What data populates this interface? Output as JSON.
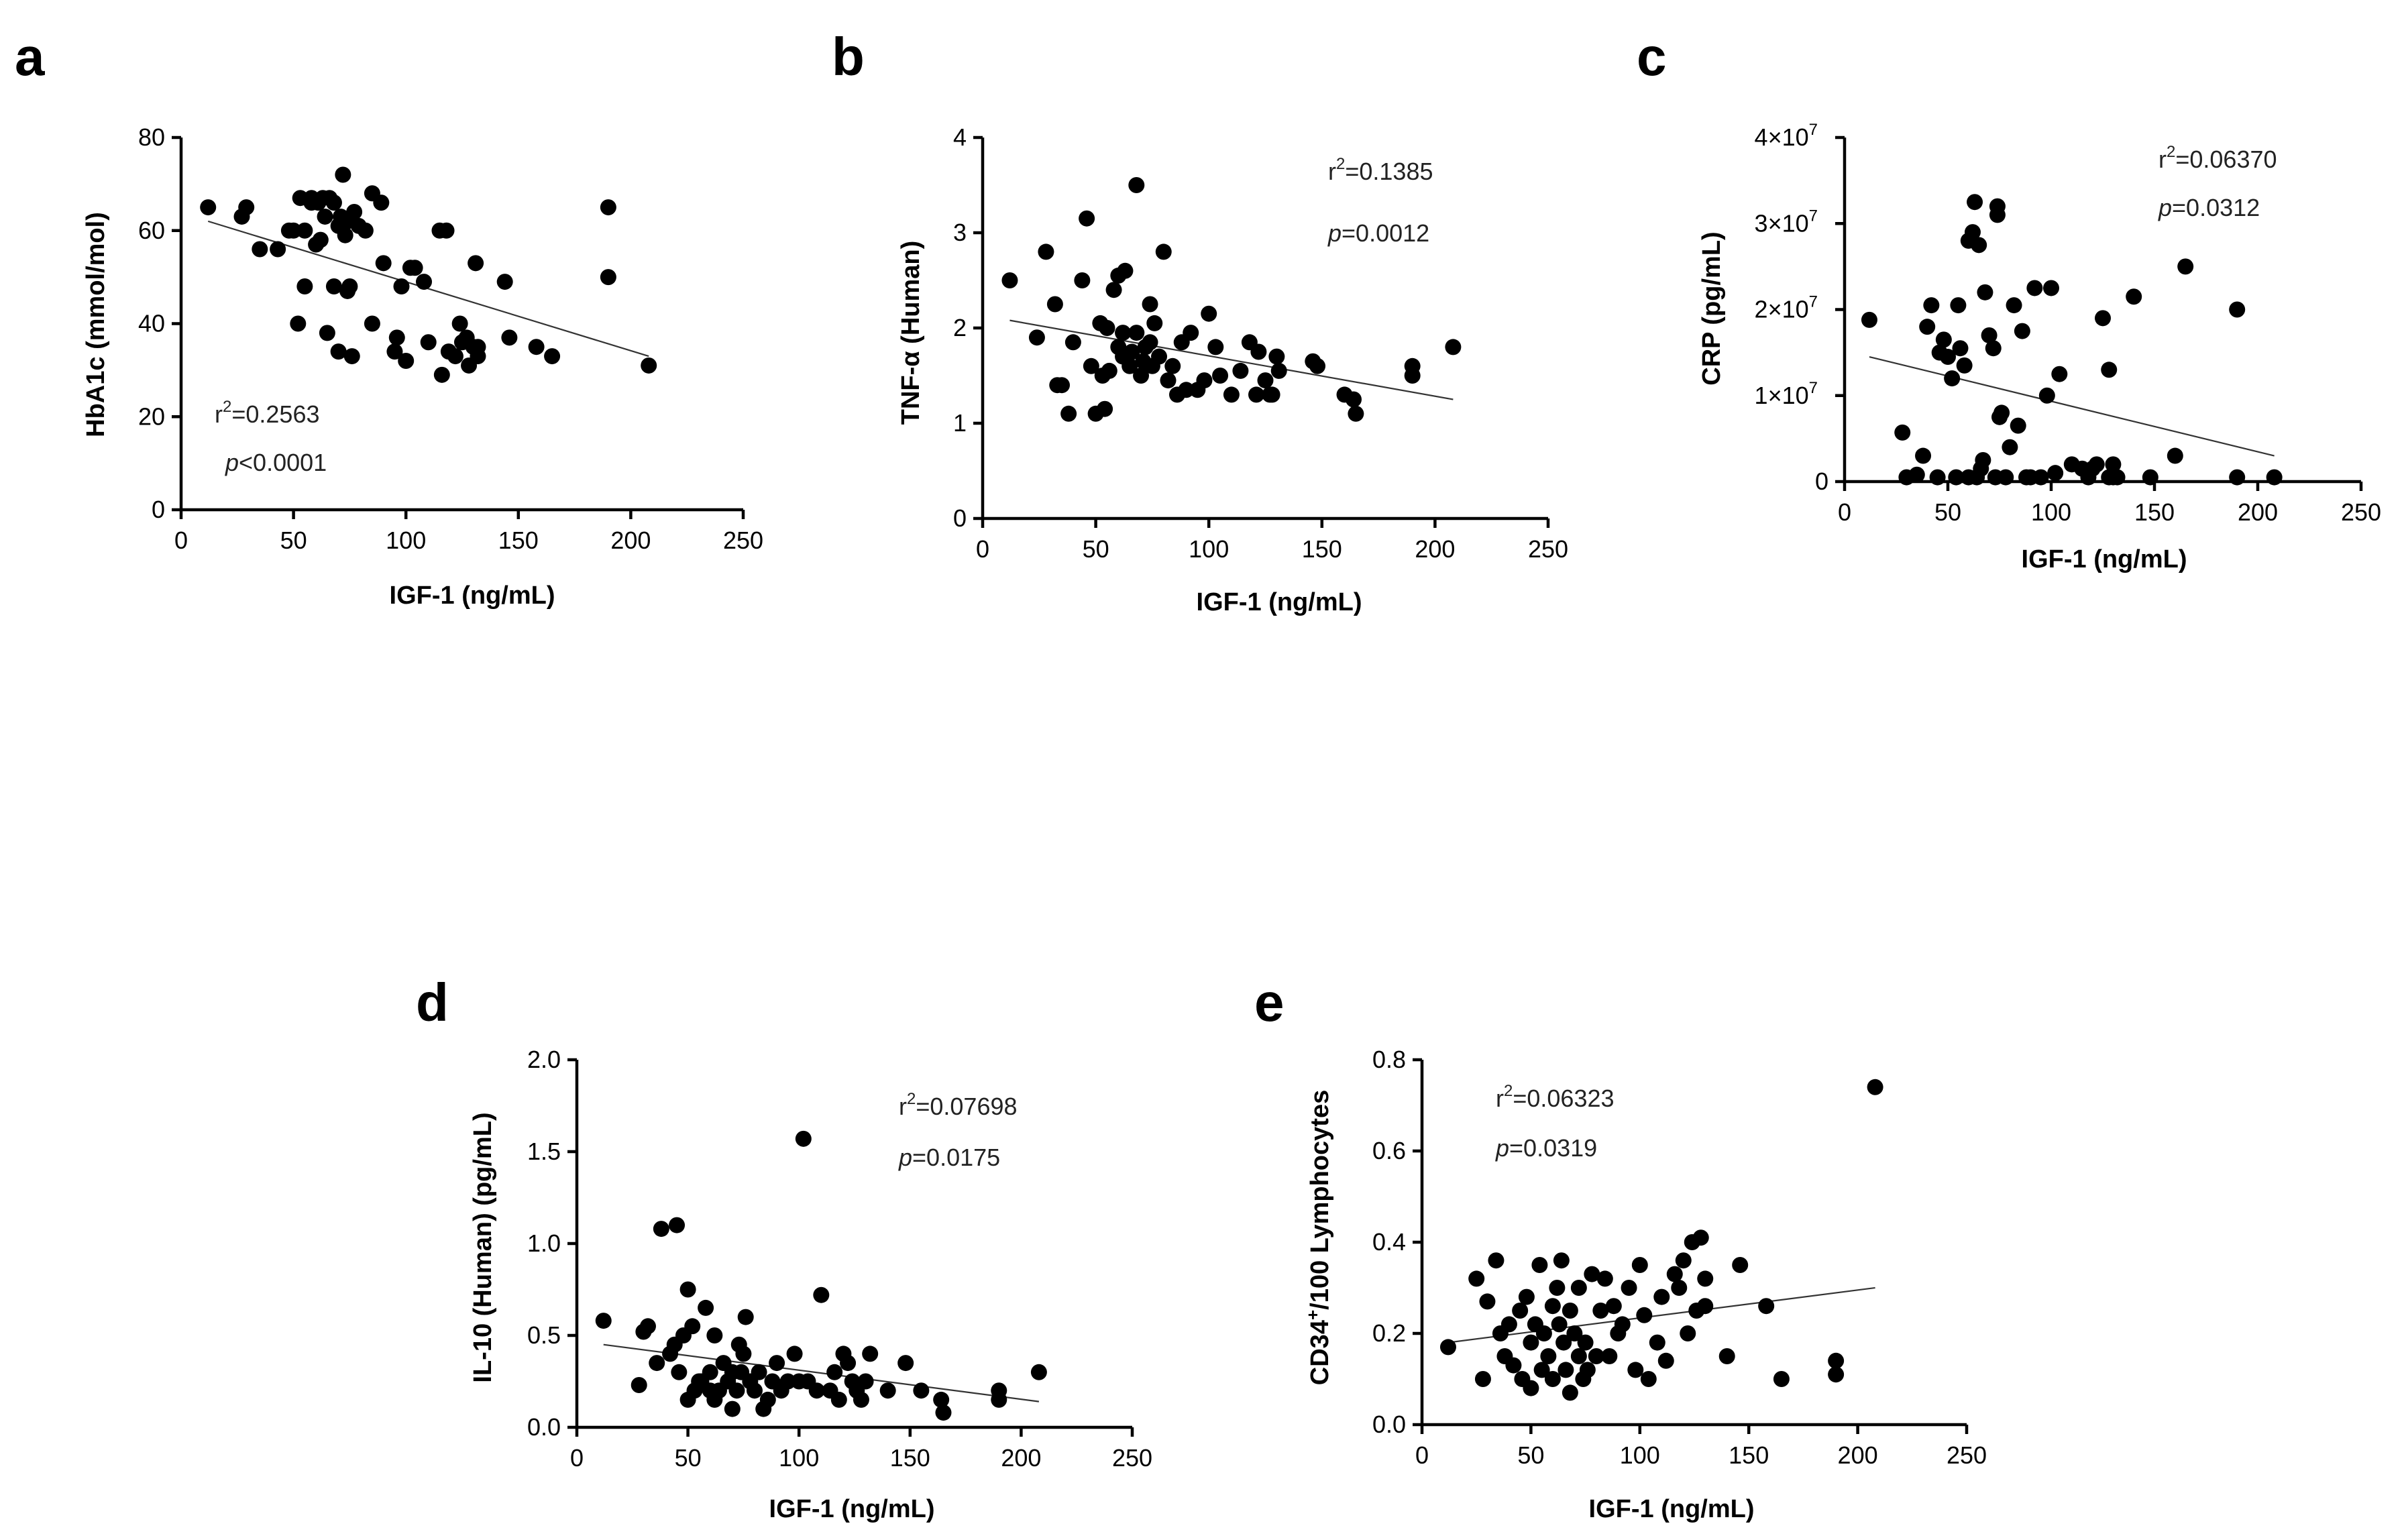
{
  "chart_data": [
    {
      "type": "scatter",
      "panel": "a",
      "xlabel": "IGF-1 (ng/mL)",
      "ylabel": "HbA1c (mmol/mol)",
      "xlim": [
        0,
        250
      ],
      "ylim": [
        0,
        80
      ],
      "xticks": [
        "0",
        "50",
        "100",
        "150",
        "200",
        "250"
      ],
      "yticks": [
        "0",
        "20",
        "40",
        "60",
        "80"
      ],
      "stats": {
        "r_prefix": "r",
        "r_sup": "2",
        "r_value": "=0.2563",
        "p_prefix": "p",
        "p_value": "<0.0001"
      },
      "fit": {
        "x": [
          12,
          208
        ],
        "y": [
          62,
          33
        ]
      },
      "points": {
        "x": [
          12,
          27,
          29,
          35,
          43,
          48,
          50,
          52,
          53,
          55,
          55,
          58,
          58,
          60,
          61,
          62,
          63,
          64,
          65,
          66,
          68,
          68,
          70,
          70,
          71,
          72,
          73,
          74,
          74,
          75,
          76,
          77,
          79,
          82,
          85,
          85,
          89,
          90,
          95,
          96,
          98,
          100,
          102,
          104,
          108,
          110,
          115,
          116,
          118,
          119,
          122,
          124,
          125,
          127,
          128,
          130,
          131,
          132,
          132,
          144,
          146,
          158,
          165,
          190,
          190,
          208
        ],
        "y": [
          65,
          63,
          65,
          56,
          56,
          60,
          60,
          40,
          67,
          48,
          60,
          66,
          67,
          57,
          66,
          58,
          67,
          63,
          38,
          67,
          48,
          66,
          61,
          34,
          63,
          72,
          59,
          62,
          47,
          48,
          33,
          64,
          61,
          60,
          40,
          68,
          66,
          53,
          34,
          37,
          48,
          32,
          52,
          52,
          49,
          36,
          60,
          29,
          60,
          34,
          33,
          40,
          36,
          37,
          31,
          35,
          53,
          35,
          33,
          49,
          37,
          35,
          33,
          65,
          50,
          31
        ]
      }
    },
    {
      "type": "scatter",
      "panel": "b",
      "xlabel": "IGF-1 (ng/mL)",
      "ylabel": "TNF-α (Human)",
      "xlim": [
        0,
        250
      ],
      "ylim": [
        0,
        4
      ],
      "xticks": [
        "0",
        "50",
        "100",
        "150",
        "200",
        "250"
      ],
      "yticks": [
        "0",
        "1",
        "2",
        "3",
        "4"
      ],
      "stats": {
        "r_prefix": "r",
        "r_sup": "2",
        "r_value": "=0.1385",
        "p_prefix": "p",
        "p_value": "=0.0012"
      },
      "fit": {
        "x": [
          12,
          208
        ],
        "y": [
          2.08,
          1.25
        ]
      },
      "points": {
        "x": [
          12,
          24,
          28,
          32,
          33,
          35,
          38,
          40,
          44,
          46,
          48,
          50,
          52,
          53,
          54,
          55,
          56,
          58,
          60,
          60,
          62,
          62,
          63,
          65,
          66,
          68,
          68,
          70,
          71,
          72,
          74,
          74,
          75,
          76,
          78,
          80,
          82,
          84,
          86,
          88,
          90,
          92,
          95,
          98,
          100,
          103,
          105,
          110,
          114,
          118,
          121,
          122,
          125,
          127,
          128,
          130,
          131,
          146,
          148,
          160,
          164,
          165,
          190,
          190,
          208
        ],
        "y": [
          2.5,
          1.9,
          2.8,
          2.25,
          1.4,
          1.4,
          1.1,
          1.85,
          2.5,
          3.15,
          1.6,
          1.1,
          2.05,
          1.5,
          1.15,
          2.0,
          1.55,
          2.4,
          1.8,
          2.55,
          1.95,
          1.7,
          2.6,
          1.6,
          1.75,
          1.95,
          3.5,
          1.5,
          1.65,
          1.8,
          1.85,
          2.25,
          1.6,
          2.05,
          1.7,
          2.8,
          1.45,
          1.6,
          1.3,
          1.85,
          1.35,
          1.95,
          1.35,
          1.45,
          2.15,
          1.8,
          1.5,
          1.3,
          1.55,
          1.85,
          1.3,
          1.75,
          1.45,
          1.3,
          1.3,
          1.7,
          1.55,
          1.65,
          1.6,
          1.3,
          1.25,
          1.1,
          1.6,
          1.5,
          1.8
        ]
      }
    },
    {
      "type": "scatter",
      "panel": "c",
      "xlabel": "IGF-1 (ng/mL)",
      "ylabel": "CRP (pg/mL)",
      "xlim": [
        0,
        250
      ],
      "ylim": [
        0,
        40000000
      ],
      "xticks": [
        "0",
        "50",
        "100",
        "150",
        "200",
        "250"
      ],
      "yticks": [
        "0",
        "1×10",
        "2×10",
        "3×10",
        "4×10"
      ],
      "ytick_exponent": "7",
      "stats": {
        "r_prefix": "r",
        "r_sup": "2",
        "r_value": "=0.06370",
        "p_prefix": "p",
        "p_value": "=0.0312"
      },
      "fit": {
        "x": [
          12,
          208
        ],
        "y": [
          14500000,
          3000000
        ]
      },
      "points": {
        "x": [
          12,
          28,
          30,
          35,
          38,
          40,
          42,
          45,
          46,
          48,
          50,
          52,
          54,
          55,
          56,
          58,
          60,
          60,
          62,
          63,
          64,
          65,
          66,
          67,
          68,
          70,
          72,
          73,
          74,
          74,
          75,
          76,
          78,
          80,
          82,
          84,
          86,
          88,
          90,
          92,
          95,
          98,
          100,
          102,
          104,
          110,
          115,
          118,
          120,
          122,
          125,
          128,
          128,
          130,
          130,
          132,
          140,
          148,
          160,
          165,
          190,
          190,
          208
        ],
        "y": [
          18800000,
          5700000,
          500000,
          800000,
          3000000,
          18000000,
          20500000,
          500000,
          15000000,
          16500000,
          14500000,
          12000000,
          500000,
          20500000,
          15500000,
          13500000,
          28000000,
          500000,
          29000000,
          32500000,
          500000,
          27500000,
          1500000,
          2500000,
          22000000,
          17000000,
          15500000,
          500000,
          32000000,
          31000000,
          7500000,
          8000000,
          500000,
          4000000,
          20500000,
          6500000,
          17500000,
          500000,
          500000,
          22500000,
          500000,
          10000000,
          22500000,
          1000000,
          12500000,
          2000000,
          1500000,
          500000,
          1500000,
          2000000,
          19000000,
          13000000,
          500000,
          2000000,
          500000,
          500000,
          21500000,
          500000,
          3000000,
          25000000,
          20000000,
          500000,
          500000
        ]
      }
    },
    {
      "type": "scatter",
      "panel": "d",
      "xlabel": "IGF-1 (ng/mL)",
      "ylabel": "IL-10 (Human) (pg/mL)",
      "xlim": [
        0,
        250
      ],
      "ylim": [
        0,
        2.0
      ],
      "xticks": [
        "0",
        "50",
        "100",
        "150",
        "200",
        "250"
      ],
      "yticks": [
        "0.0",
        "0.5",
        "1.0",
        "1.5",
        "2.0"
      ],
      "stats": {
        "r_prefix": "r",
        "r_sup": "2",
        "r_value": "=0.07698",
        "p_prefix": "p",
        "p_value": "=0.0175"
      },
      "fit": {
        "x": [
          12,
          208
        ],
        "y": [
          0.45,
          0.14
        ]
      },
      "points": {
        "x": [
          12,
          28,
          30,
          32,
          36,
          38,
          42,
          44,
          45,
          46,
          48,
          50,
          50,
          52,
          53,
          55,
          56,
          58,
          60,
          60,
          62,
          62,
          64,
          66,
          68,
          70,
          70,
          72,
          73,
          74,
          75,
          76,
          78,
          80,
          82,
          84,
          86,
          88,
          90,
          92,
          95,
          98,
          100,
          102,
          104,
          108,
          110,
          114,
          116,
          118,
          120,
          122,
          124,
          126,
          128,
          130,
          132,
          140,
          148,
          155,
          164,
          165,
          190,
          190,
          208
        ],
        "y": [
          0.58,
          0.23,
          0.52,
          0.55,
          0.35,
          1.08,
          0.4,
          0.45,
          1.1,
          0.3,
          0.5,
          0.75,
          0.15,
          0.55,
          0.2,
          0.25,
          0.25,
          0.65,
          0.2,
          0.3,
          0.5,
          0.15,
          0.2,
          0.35,
          0.25,
          0.1,
          0.3,
          0.2,
          0.45,
          0.3,
          0.4,
          0.6,
          0.25,
          0.2,
          0.3,
          0.1,
          0.15,
          0.25,
          0.35,
          0.2,
          0.25,
          0.4,
          0.25,
          1.57,
          0.25,
          0.2,
          0.72,
          0.2,
          0.3,
          0.15,
          0.4,
          0.35,
          0.25,
          0.2,
          0.15,
          0.25,
          0.4,
          0.2,
          0.35,
          0.2,
          0.15,
          0.08,
          0.2,
          0.15,
          0.3
        ]
      }
    },
    {
      "type": "scatter",
      "panel": "e",
      "xlabel": "IGF-1 (ng/mL)",
      "ylabel_prefix": "CD34",
      "ylabel_sup": "+",
      "ylabel_suffix": "/100 Lymphocytes",
      "xlim": [
        0,
        250
      ],
      "ylim": [
        0,
        0.8
      ],
      "xticks": [
        "0",
        "50",
        "100",
        "150",
        "200",
        "250"
      ],
      "yticks": [
        "0.0",
        "0.2",
        "0.4",
        "0.6",
        "0.8"
      ],
      "stats": {
        "r_prefix": "r",
        "r_sup": "2",
        "r_value": "=0.06323",
        "p_prefix": "p",
        "p_value": "=0.0319"
      },
      "fit": {
        "x": [
          12,
          208
        ],
        "y": [
          0.18,
          0.3
        ]
      },
      "points": {
        "x": [
          12,
          25,
          28,
          30,
          34,
          36,
          38,
          40,
          42,
          45,
          46,
          48,
          50,
          50,
          52,
          54,
          55,
          56,
          58,
          60,
          60,
          62,
          63,
          64,
          65,
          66,
          68,
          68,
          70,
          72,
          72,
          74,
          75,
          76,
          78,
          80,
          82,
          84,
          86,
          88,
          90,
          92,
          95,
          98,
          100,
          102,
          104,
          108,
          110,
          112,
          116,
          118,
          120,
          122,
          124,
          126,
          128,
          130,
          130,
          140,
          146,
          158,
          165,
          190,
          190,
          208
        ],
        "y": [
          0.17,
          0.32,
          0.1,
          0.27,
          0.36,
          0.2,
          0.15,
          0.22,
          0.13,
          0.25,
          0.1,
          0.28,
          0.08,
          0.18,
          0.22,
          0.35,
          0.12,
          0.2,
          0.15,
          0.26,
          0.1,
          0.3,
          0.22,
          0.36,
          0.18,
          0.12,
          0.25,
          0.07,
          0.2,
          0.15,
          0.3,
          0.1,
          0.18,
          0.12,
          0.33,
          0.15,
          0.25,
          0.32,
          0.15,
          0.26,
          0.2,
          0.22,
          0.3,
          0.12,
          0.35,
          0.24,
          0.1,
          0.18,
          0.28,
          0.14,
          0.33,
          0.3,
          0.36,
          0.2,
          0.4,
          0.25,
          0.41,
          0.32,
          0.26,
          0.15,
          0.35,
          0.26,
          0.1,
          0.14,
          0.11,
          0.74
        ]
      }
    }
  ]
}
